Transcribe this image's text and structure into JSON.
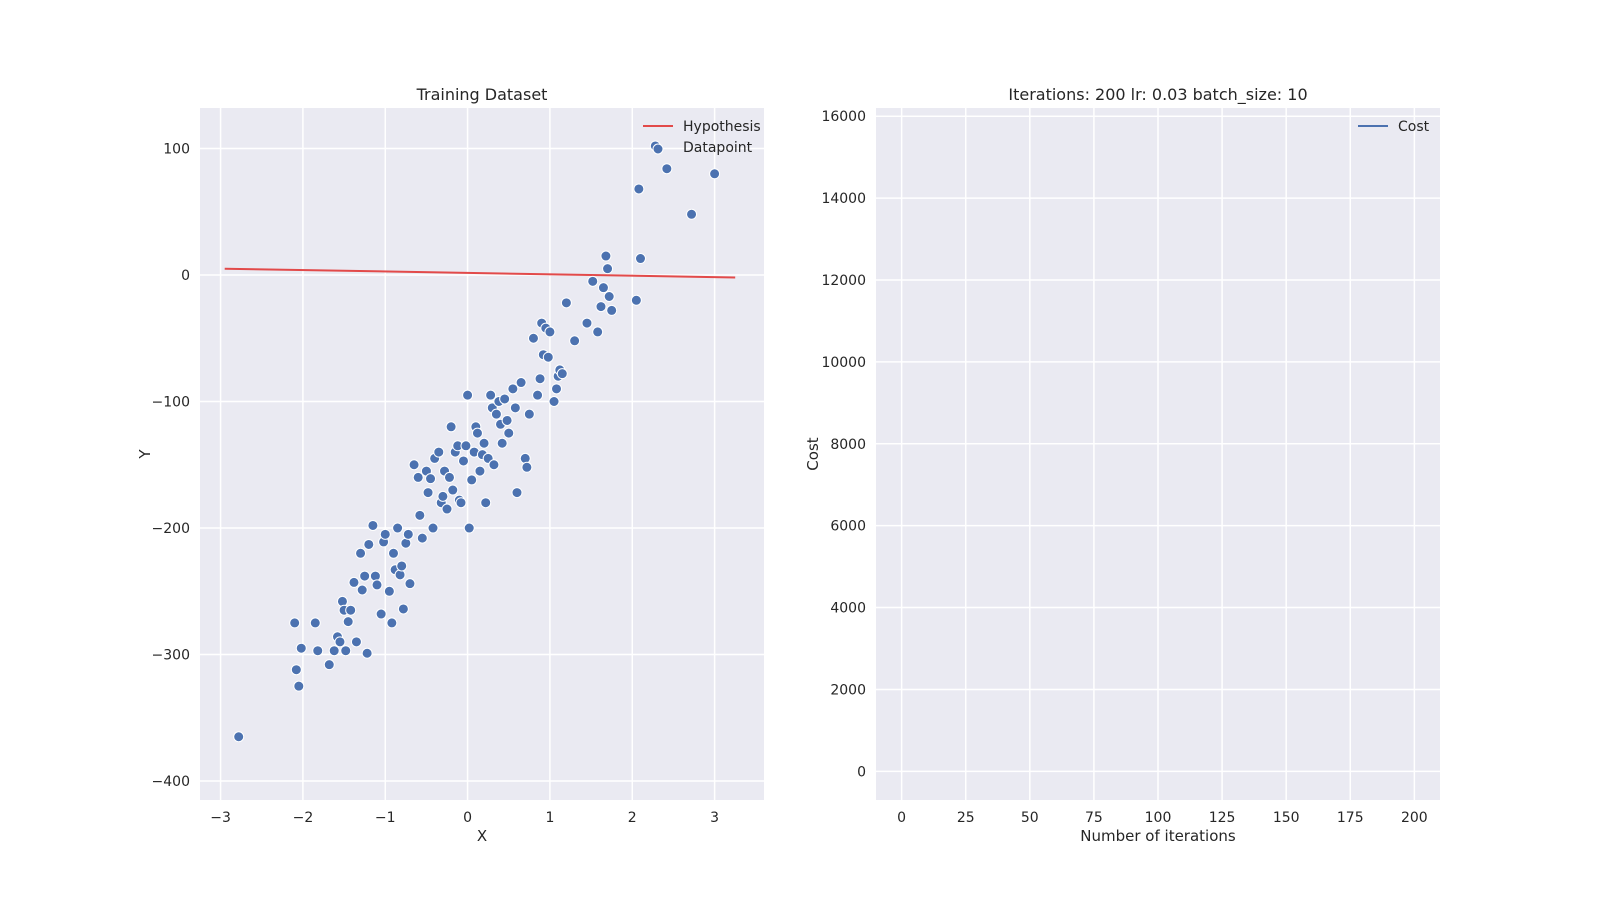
{
  "chart_data": [
    {
      "type": "scatter",
      "title": "Training Dataset",
      "xlabel": "X",
      "ylabel": "Y",
      "xlim": [
        -3.25,
        3.6
      ],
      "ylim": [
        -415,
        132
      ],
      "xticks": [
        -3,
        -2,
        -1,
        0,
        1,
        2,
        3
      ],
      "xtick_labels": [
        "−3",
        "−2",
        "−1",
        "0",
        "1",
        "2",
        "3"
      ],
      "yticks": [
        -400,
        -300,
        -200,
        -100,
        0,
        100
      ],
      "ytick_labels": [
        "−400",
        "−300",
        "−200",
        "−100",
        "0",
        "100"
      ],
      "grid": true,
      "legend_position": "top-right",
      "series": [
        {
          "name": "Hypothesis",
          "kind": "line",
          "color": "#e24a4a",
          "x": [
            -2.95,
            3.25
          ],
          "y": [
            5,
            -2
          ]
        },
        {
          "name": "Datapoint",
          "kind": "scatter",
          "color": "#4c72b0",
          "x": [
            -2.78,
            -2.1,
            -2.08,
            -2.05,
            -2.02,
            -1.85,
            -1.82,
            -1.68,
            -1.62,
            -1.58,
            -1.55,
            -1.52,
            -1.5,
            -1.48,
            -1.45,
            -1.42,
            -1.38,
            -1.35,
            -1.3,
            -1.28,
            -1.25,
            -1.22,
            -1.2,
            -1.15,
            -1.12,
            -1.1,
            -1.05,
            -1.02,
            -1.0,
            -0.95,
            -0.92,
            -0.9,
            -0.88,
            -0.85,
            -0.82,
            -0.8,
            -0.78,
            -0.75,
            -0.72,
            -0.7,
            -0.65,
            -0.6,
            -0.58,
            -0.55,
            -0.5,
            -0.48,
            -0.45,
            -0.42,
            -0.4,
            -0.35,
            -0.32,
            -0.3,
            -0.28,
            -0.25,
            -0.22,
            -0.2,
            -0.18,
            -0.15,
            -0.12,
            -0.1,
            -0.08,
            -0.05,
            -0.02,
            0.0,
            0.02,
            0.05,
            0.08,
            0.1,
            0.12,
            0.15,
            0.18,
            0.2,
            0.22,
            0.25,
            0.28,
            0.3,
            0.32,
            0.35,
            0.38,
            0.4,
            0.42,
            0.45,
            0.48,
            0.5,
            0.55,
            0.58,
            0.6,
            0.65,
            0.7,
            0.72,
            0.75,
            0.8,
            0.85,
            0.88,
            0.9,
            0.92,
            0.95,
            0.98,
            1.0,
            1.05,
            1.08,
            1.1,
            1.12,
            1.15,
            1.2,
            1.3,
            1.45,
            1.52,
            1.58,
            1.62,
            1.65,
            1.68,
            1.7,
            1.72,
            1.75,
            2.05,
            2.08,
            2.1,
            2.28,
            2.42,
            2.72,
            3.0
          ],
          "y": [
            -365,
            -275,
            -312,
            -325,
            -295,
            -275,
            -297,
            -308,
            -297,
            -286,
            -290,
            -258,
            -265,
            -297,
            -274,
            -265,
            -243,
            -290,
            -220,
            -249,
            -238,
            -299,
            -213,
            -198,
            -238,
            -245,
            -268,
            -211,
            -205,
            -250,
            -275,
            -220,
            -233,
            -200,
            -237,
            -230,
            -264,
            -212,
            -205,
            -244,
            -150,
            -160,
            -190,
            -208,
            -155,
            -172,
            -161,
            -200,
            -145,
            -140,
            -180,
            -175,
            -155,
            -185,
            -160,
            -120,
            -170,
            -140,
            -135,
            -178,
            -180,
            -147,
            -135,
            -95,
            -200,
            -162,
            -140,
            -120,
            -125,
            -155,
            -142,
            -133,
            -180,
            -145,
            -95,
            -105,
            -150,
            -110,
            -100,
            -118,
            -133,
            -98,
            -115,
            -125,
            -90,
            -105,
            -172,
            -85,
            -145,
            -152,
            -110,
            -50,
            -95,
            -82,
            -38,
            -63,
            -42,
            -65,
            -45,
            -100,
            -90,
            -80,
            -75,
            -78,
            -22,
            -52,
            -38,
            -5,
            -45,
            -25,
            -10,
            15,
            5,
            -17,
            -28,
            -20,
            68,
            13,
            102,
            84,
            48,
            80
          ]
        }
      ]
    },
    {
      "type": "line",
      "title": "Iterations: 200 lr: 0.03 batch_size: 10",
      "xlabel": "Number of iterations",
      "ylabel": "Cost",
      "xlim": [
        -10,
        210
      ],
      "ylim": [
        -700,
        16200
      ],
      "xticks": [
        0,
        25,
        50,
        75,
        100,
        125,
        150,
        175,
        200
      ],
      "xtick_labels": [
        "0",
        "25",
        "50",
        "75",
        "100",
        "125",
        "150",
        "175",
        "200"
      ],
      "yticks": [
        0,
        2000,
        4000,
        6000,
        8000,
        10000,
        12000,
        14000,
        16000
      ],
      "ytick_labels": [
        "0",
        "2000",
        "4000",
        "6000",
        "8000",
        "10000",
        "12000",
        "14000",
        "16000"
      ],
      "grid": true,
      "legend_position": "top-right",
      "series": [
        {
          "name": "Cost",
          "kind": "line",
          "color": "#4c72b0",
          "x": [],
          "y": []
        }
      ]
    }
  ]
}
